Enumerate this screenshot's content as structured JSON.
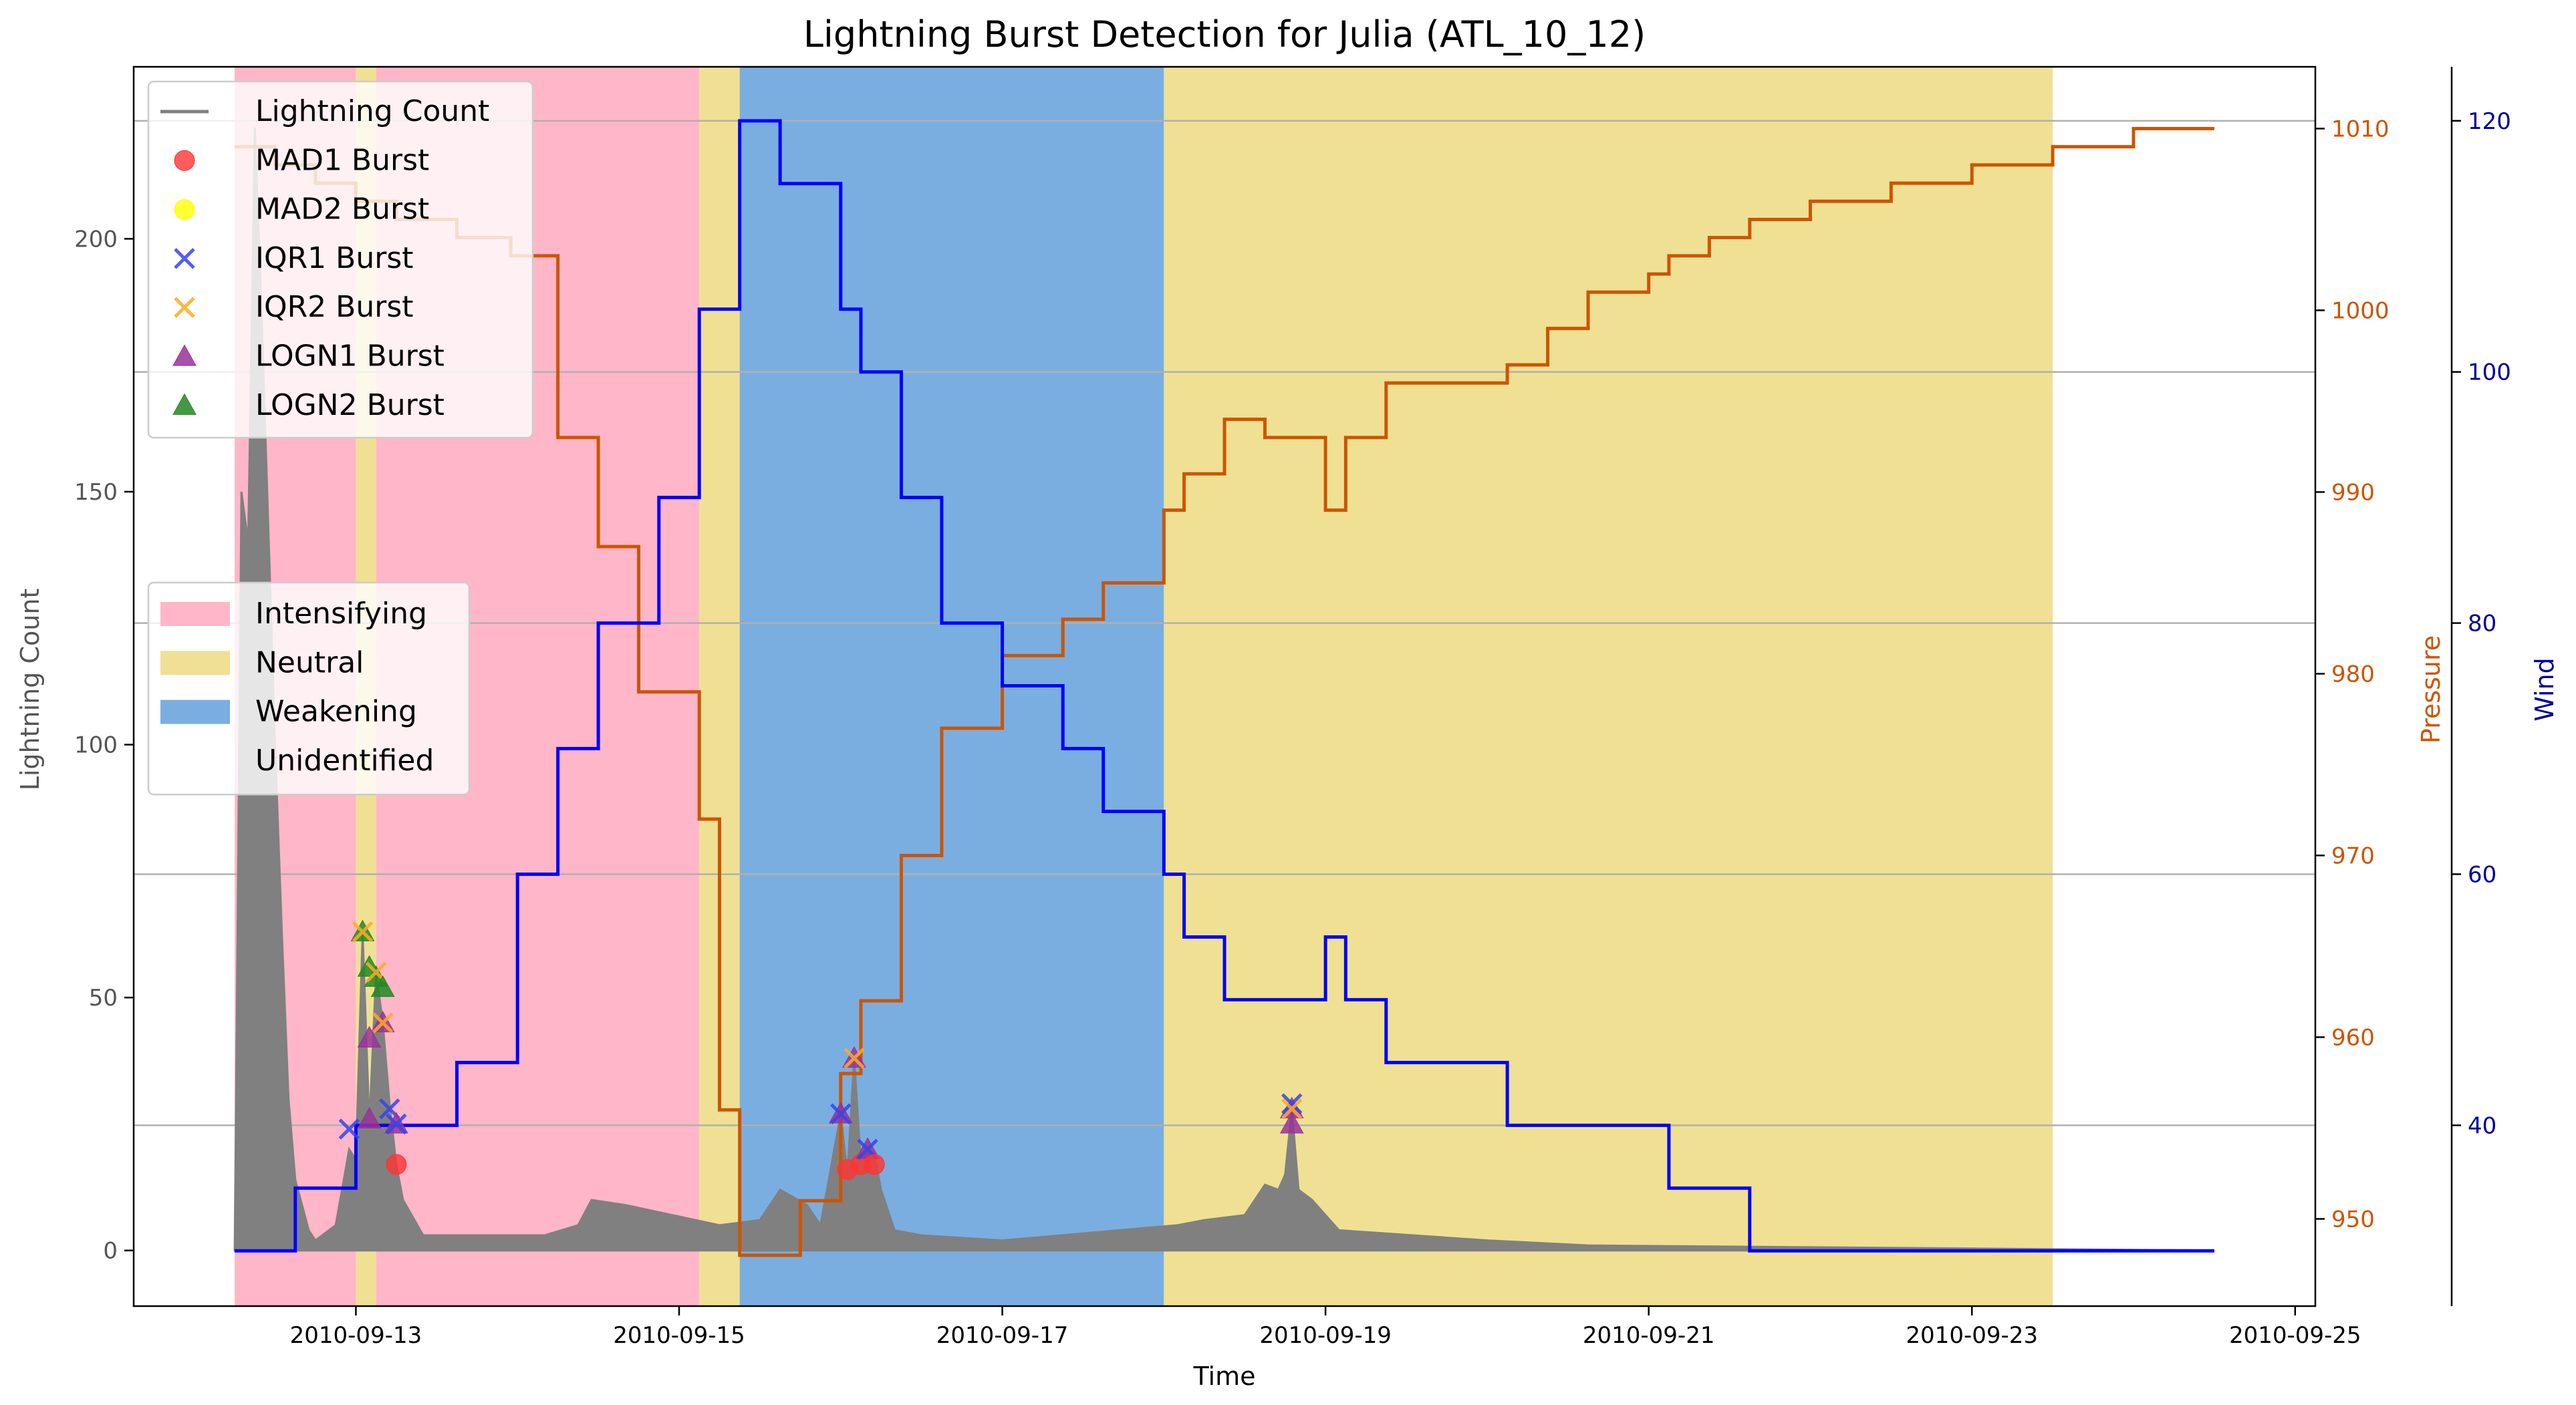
{
  "chart_data": {
    "type": "line",
    "title": "Lightning Burst Detection for Julia (ATL_10_12)",
    "xlabel": "Time",
    "ylabel": "Lightning Count",
    "y2label": "Pressure",
    "y3label": "Wind",
    "xlim": [
      "2010-09-11T15:00",
      "2010-09-25T03:00"
    ],
    "ylim": [
      -11,
      234
    ],
    "y2lim": [
      945.2,
      1013.4
    ],
    "y3lim": [
      25.6,
      124.3
    ],
    "x_ticks": [
      "2010-09-13",
      "2010-09-15",
      "2010-09-17",
      "2010-09-19",
      "2010-09-21",
      "2010-09-23",
      "2010-09-25"
    ],
    "y_ticks": [
      0,
      50,
      100,
      150,
      200
    ],
    "y2_ticks": [
      950,
      960,
      970,
      980,
      990,
      1000,
      1010
    ],
    "y3_ticks": [
      40,
      60,
      80,
      100,
      120
    ],
    "grid": "horizontal lines at right-axis (wind) ticks",
    "legend_series_position": "top-left",
    "legend_phase_position": "center-left",
    "colors": {
      "lightning": "#808080",
      "pressure": "#cc5500",
      "wind": "#0000ff",
      "intensifying": "#ffb6c8",
      "neutral": "#f0e094",
      "weakening": "#7aaee0",
      "grid": "#b0b0b0",
      "mad1": "#ff3333",
      "mad2": "#ffff00",
      "iqr1": "#3344ee",
      "iqr2": "#ffaa22",
      "logn1": "#993399",
      "logn2": "#228822"
    },
    "legend_series": [
      {
        "label": "Lightning Count",
        "marker": "line",
        "color": "#808080"
      },
      {
        "label": "MAD1 Burst",
        "marker": "circle",
        "color": "#ff3333"
      },
      {
        "label": "MAD2 Burst",
        "marker": "circle",
        "color": "#ffff00"
      },
      {
        "label": "IQR1 Burst",
        "marker": "x",
        "color": "#3344ee"
      },
      {
        "label": "IQR2 Burst",
        "marker": "x",
        "color": "#ffaa22"
      },
      {
        "label": "LOGN1 Burst",
        "marker": "triangle",
        "color": "#993399"
      },
      {
        "label": "LOGN2 Burst",
        "marker": "triangle",
        "color": "#228822"
      }
    ],
    "legend_phases": [
      {
        "label": "Intensifying",
        "color": "#ffb6c8"
      },
      {
        "label": "Neutral",
        "color": "#f0e094"
      },
      {
        "label": "Weakening",
        "color": "#7aaee0"
      },
      {
        "label": "Unidentified",
        "color": "#ffffff"
      }
    ],
    "phases": [
      {
        "phase": "Intensifying",
        "start": "2010-09-12T06:00",
        "end": "2010-09-13T00:00"
      },
      {
        "phase": "Neutral",
        "start": "2010-09-13T00:00",
        "end": "2010-09-13T03:00"
      },
      {
        "phase": "Intensifying",
        "start": "2010-09-13T03:00",
        "end": "2010-09-15T03:00"
      },
      {
        "phase": "Neutral",
        "start": "2010-09-15T03:00",
        "end": "2010-09-15T09:00"
      },
      {
        "phase": "Weakening",
        "start": "2010-09-15T09:00",
        "end": "2010-09-18T00:00"
      },
      {
        "phase": "Neutral",
        "start": "2010-09-18T00:00",
        "end": "2010-09-23T12:00"
      }
    ],
    "pressure": [
      [
        "2010-09-12T06:00",
        1009
      ],
      [
        "2010-09-12T12:00",
        1008
      ],
      [
        "2010-09-12T18:00",
        1007
      ],
      [
        "2010-09-13T00:00",
        1006
      ],
      [
        "2010-09-13T06:00",
        1005
      ],
      [
        "2010-09-13T15:00",
        1004
      ],
      [
        "2010-09-13T23:00",
        1003
      ],
      [
        "2010-09-14T06:00",
        993
      ],
      [
        "2010-09-14T09:00",
        993
      ],
      [
        "2010-09-14T12:00",
        987
      ],
      [
        "2010-09-14T15:00",
        987
      ],
      [
        "2010-09-14T18:00",
        979
      ],
      [
        "2010-09-15T00:00",
        979
      ],
      [
        "2010-09-15T03:00",
        972
      ],
      [
        "2010-09-15T06:00",
        956
      ],
      [
        "2010-09-15T09:00",
        948
      ],
      [
        "2010-09-15T15:00",
        948
      ],
      [
        "2010-09-15T18:00",
        951
      ],
      [
        "2010-09-16T00:00",
        958
      ],
      [
        "2010-09-16T03:00",
        962
      ],
      [
        "2010-09-16T09:00",
        970
      ],
      [
        "2010-09-16T15:00",
        977
      ],
      [
        "2010-09-17T00:00",
        981
      ],
      [
        "2010-09-17T09:00",
        983
      ],
      [
        "2010-09-17T15:00",
        985
      ],
      [
        "2010-09-18T00:00",
        989
      ],
      [
        "2010-09-18T03:00",
        991
      ],
      [
        "2010-09-18T09:00",
        994
      ],
      [
        "2010-09-18T15:00",
        993
      ],
      [
        "2010-09-19T00:00",
        989
      ],
      [
        "2010-09-19T03:00",
        993
      ],
      [
        "2010-09-19T09:00",
        996
      ],
      [
        "2010-09-19T18:00",
        996
      ],
      [
        "2010-09-20T03:00",
        997
      ],
      [
        "2010-09-20T09:00",
        999
      ],
      [
        "2010-09-20T15:00",
        1001
      ],
      [
        "2010-09-21T00:00",
        1002
      ],
      [
        "2010-09-21T03:00",
        1003
      ],
      [
        "2010-09-21T09:00",
        1004
      ],
      [
        "2010-09-21T15:00",
        1005
      ],
      [
        "2010-09-22T00:00",
        1006
      ],
      [
        "2010-09-22T12:00",
        1007
      ],
      [
        "2010-09-23T00:00",
        1008
      ],
      [
        "2010-09-23T12:00",
        1009
      ],
      [
        "2010-09-24T00:00",
        1010
      ],
      [
        "2010-09-24T12:00",
        1010
      ]
    ],
    "wind": [
      [
        "2010-09-12T06:00",
        30
      ],
      [
        "2010-09-12T15:00",
        35
      ],
      [
        "2010-09-13T00:00",
        40
      ],
      [
        "2010-09-13T15:00",
        45
      ],
      [
        "2010-09-14T00:00",
        60
      ],
      [
        "2010-09-14T06:00",
        70
      ],
      [
        "2010-09-14T12:00",
        80
      ],
      [
        "2010-09-14T21:00",
        90
      ],
      [
        "2010-09-15T03:00",
        105
      ],
      [
        "2010-09-15T09:00",
        120
      ],
      [
        "2010-09-15T15:00",
        115
      ],
      [
        "2010-09-16T00:00",
        105
      ],
      [
        "2010-09-16T03:00",
        100
      ],
      [
        "2010-09-16T09:00",
        90
      ],
      [
        "2010-09-16T15:00",
        80
      ],
      [
        "2010-09-17T00:00",
        75
      ],
      [
        "2010-09-17T09:00",
        70
      ],
      [
        "2010-09-17T15:00",
        65
      ],
      [
        "2010-09-18T00:00",
        60
      ],
      [
        "2010-09-18T03:00",
        55
      ],
      [
        "2010-09-18T09:00",
        50
      ],
      [
        "2010-09-19T00:00",
        55
      ],
      [
        "2010-09-19T03:00",
        50
      ],
      [
        "2010-09-19T09:00",
        45
      ],
      [
        "2010-09-20T03:00",
        40
      ],
      [
        "2010-09-21T03:00",
        35
      ],
      [
        "2010-09-21T15:00",
        30
      ],
      [
        "2010-09-24T12:00",
        30
      ]
    ],
    "lightning": [
      [
        "2010-09-12T06:00",
        0
      ],
      [
        "2010-09-12T07:00",
        150
      ],
      [
        "2010-09-12T08:00",
        140
      ],
      [
        "2010-09-12T09:00",
        222
      ],
      [
        "2010-09-12T10:00",
        185
      ],
      [
        "2010-09-12T11:00",
        143
      ],
      [
        "2010-09-12T12:00",
        100
      ],
      [
        "2010-09-12T13:00",
        63
      ],
      [
        "2010-09-12T14:00",
        30
      ],
      [
        "2010-09-12T15:00",
        14
      ],
      [
        "2010-09-12T17:00",
        4
      ],
      [
        "2010-09-12T18:00",
        2
      ],
      [
        "2010-09-12T21:00",
        5
      ],
      [
        "2010-09-12T23:00",
        20
      ],
      [
        "2010-09-13T00:00",
        18
      ],
      [
        "2010-09-13T01:00",
        63
      ],
      [
        "2010-09-13T02:00",
        25
      ],
      [
        "2010-09-13T03:00",
        55
      ],
      [
        "2010-09-13T04:00",
        45
      ],
      [
        "2010-09-13T05:00",
        29
      ],
      [
        "2010-09-13T06:00",
        17
      ],
      [
        "2010-09-13T07:00",
        10
      ],
      [
        "2010-09-13T10:00",
        3
      ],
      [
        "2010-09-14T04:00",
        3
      ],
      [
        "2010-09-14T09:00",
        5
      ],
      [
        "2010-09-14T11:00",
        10
      ],
      [
        "2010-09-14T16:00",
        9
      ],
      [
        "2010-09-14T23:00",
        7
      ],
      [
        "2010-09-15T06:00",
        5
      ],
      [
        "2010-09-15T12:00",
        6
      ],
      [
        "2010-09-15T15:00",
        12
      ],
      [
        "2010-09-15T19:00",
        9
      ],
      [
        "2010-09-15T21:00",
        5
      ],
      [
        "2010-09-16T00:00",
        27
      ],
      [
        "2010-09-16T01:00",
        15
      ],
      [
        "2010-09-16T02:00",
        38
      ],
      [
        "2010-09-16T03:00",
        17
      ],
      [
        "2010-09-16T04:00",
        20
      ],
      [
        "2010-09-16T05:00",
        19
      ],
      [
        "2010-09-16T06:00",
        12
      ],
      [
        "2010-09-16T08:00",
        4
      ],
      [
        "2010-09-16T12:00",
        3
      ],
      [
        "2010-09-17T00:00",
        2
      ],
      [
        "2010-09-18T02:00",
        5
      ],
      [
        "2010-09-18T06:00",
        6
      ],
      [
        "2010-09-18T12:00",
        7
      ],
      [
        "2010-09-18T15:00",
        13
      ],
      [
        "2010-09-18T17:00",
        12
      ],
      [
        "2010-09-18T18:00",
        15
      ],
      [
        "2010-09-18T19:00",
        28
      ],
      [
        "2010-09-18T20:00",
        12
      ],
      [
        "2010-09-18T22:00",
        10
      ],
      [
        "2010-09-19T00:00",
        7
      ],
      [
        "2010-09-19T02:00",
        4
      ],
      [
        "2010-09-20T00:00",
        2
      ],
      [
        "2010-09-20T15:00",
        1
      ],
      [
        "2010-09-24T12:00",
        0
      ]
    ],
    "bursts": [
      {
        "time": "2010-09-12T23:00",
        "type": "iqr1",
        "value": 24
      },
      {
        "time": "2010-09-13T01:00",
        "type": "logn2",
        "value": 63
      },
      {
        "time": "2010-09-13T01:00",
        "type": "iqr2",
        "value": 63
      },
      {
        "time": "2010-09-13T02:00",
        "type": "logn2",
        "value": 56
      },
      {
        "time": "2010-09-13T02:00",
        "type": "logn1",
        "value": 42
      },
      {
        "time": "2010-09-13T03:00",
        "type": "logn2",
        "value": 54
      },
      {
        "time": "2010-09-13T03:00",
        "type": "iqr2",
        "value": 55
      },
      {
        "time": "2010-09-13T04:00",
        "type": "logn2",
        "value": 52
      },
      {
        "time": "2010-09-13T04:00",
        "type": "logn1",
        "value": 45
      },
      {
        "time": "2010-09-13T04:00",
        "type": "iqr2",
        "value": 45
      },
      {
        "time": "2010-09-13T02:00",
        "type": "logn1",
        "value": 26
      },
      {
        "time": "2010-09-13T05:00",
        "type": "iqr1",
        "value": 28
      },
      {
        "time": "2010-09-13T06:00",
        "type": "mad1",
        "value": 17
      },
      {
        "time": "2010-09-13T06:00",
        "type": "logn1",
        "value": 25
      },
      {
        "time": "2010-09-13T06:00",
        "type": "iqr1",
        "value": 25
      },
      {
        "time": "2010-09-16T00:00",
        "type": "logn1",
        "value": 27
      },
      {
        "time": "2010-09-16T00:00",
        "type": "iqr1",
        "value": 27
      },
      {
        "time": "2010-09-16T01:00",
        "type": "mad1",
        "value": 16
      },
      {
        "time": "2010-09-16T02:00",
        "type": "logn1",
        "value": 38
      },
      {
        "time": "2010-09-16T02:00",
        "type": "iqr2",
        "value": 38
      },
      {
        "time": "2010-09-16T03:00",
        "type": "mad1",
        "value": 17
      },
      {
        "time": "2010-09-16T04:00",
        "type": "logn1",
        "value": 20
      },
      {
        "time": "2010-09-16T04:00",
        "type": "iqr1",
        "value": 20
      },
      {
        "time": "2010-09-16T05:00",
        "type": "mad1",
        "value": 17
      },
      {
        "time": "2010-09-18T19:00",
        "type": "logn1",
        "value": 28
      },
      {
        "time": "2010-09-18T19:00",
        "type": "logn1",
        "value": 25
      },
      {
        "time": "2010-09-18T19:00",
        "type": "iqr1",
        "value": 29
      },
      {
        "time": "2010-09-18T19:00",
        "type": "iqr2",
        "value": 28
      }
    ]
  }
}
